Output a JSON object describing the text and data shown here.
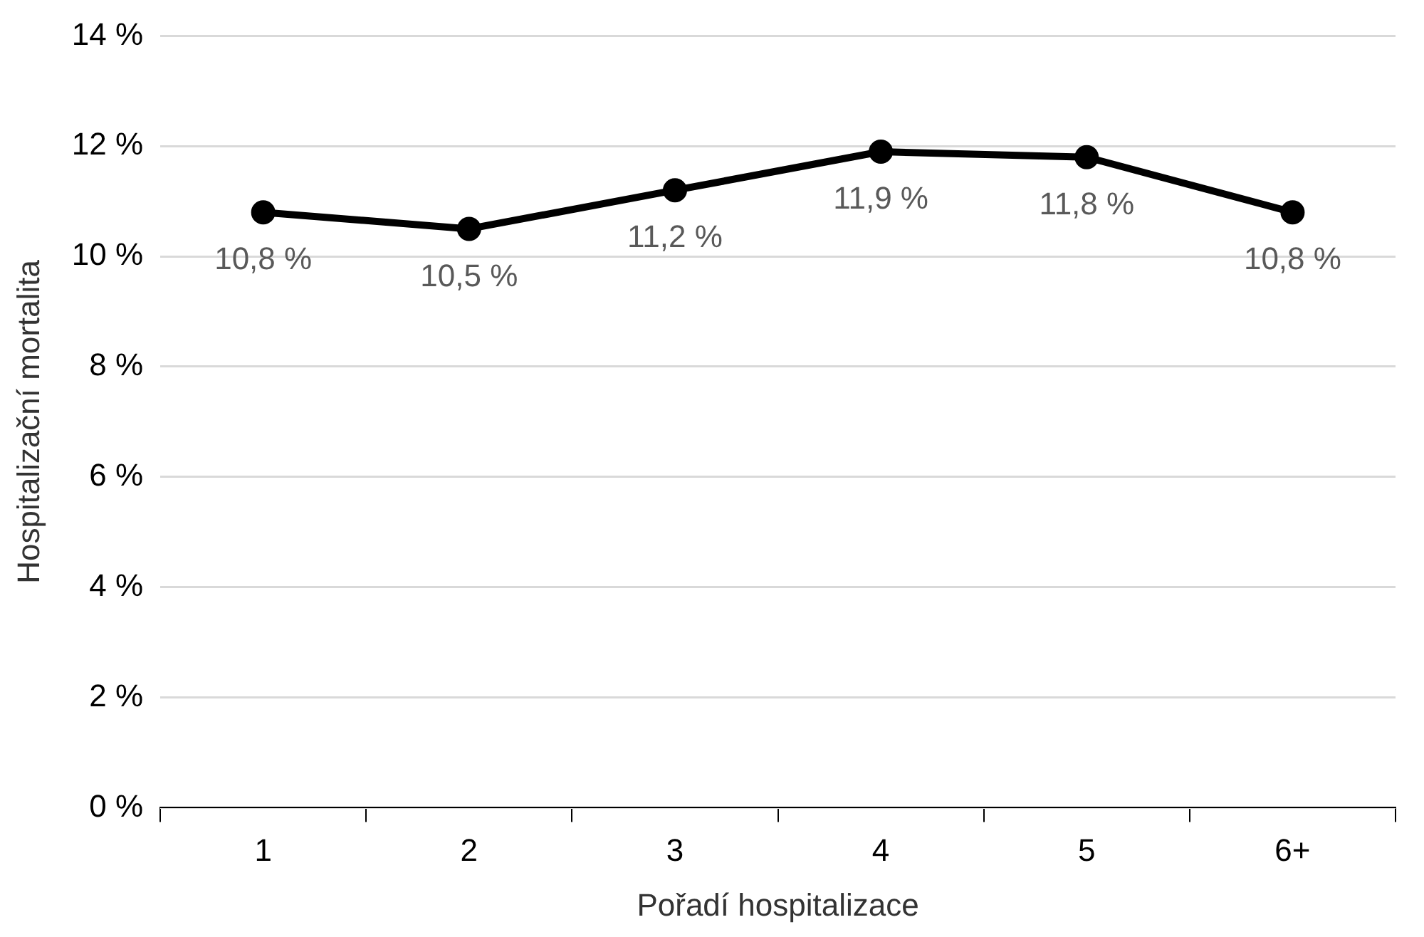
{
  "chart_data": {
    "type": "line",
    "xlabel": "Pořadí hospitalizace",
    "ylabel": "Hospitalizační mortalita",
    "categories": [
      "1",
      "2",
      "3",
      "4",
      "5",
      "6+"
    ],
    "series": [
      {
        "color": "#000000",
        "values": [
          10.8,
          10.5,
          11.2,
          11.9,
          11.8,
          10.8
        ],
        "value_labels": [
          "10,8 %",
          "10,5 %",
          "11,2 %",
          "11,9 %",
          "11,8 %",
          "10,8 %"
        ]
      }
    ],
    "ylim": [
      0,
      14
    ],
    "yticks": [
      {
        "value": 0,
        "label": "0 %"
      },
      {
        "value": 2,
        "label": "2 %"
      },
      {
        "value": 4,
        "label": "4 %"
      },
      {
        "value": 6,
        "label": "6 %"
      },
      {
        "value": 8,
        "label": "8 %"
      },
      {
        "value": 10,
        "label": "10 %"
      },
      {
        "value": 12,
        "label": "12 %"
      },
      {
        "value": 14,
        "label": "14 %"
      }
    ],
    "grid": "y",
    "legend": false,
    "marker": "circle",
    "line_style": "solid"
  }
}
